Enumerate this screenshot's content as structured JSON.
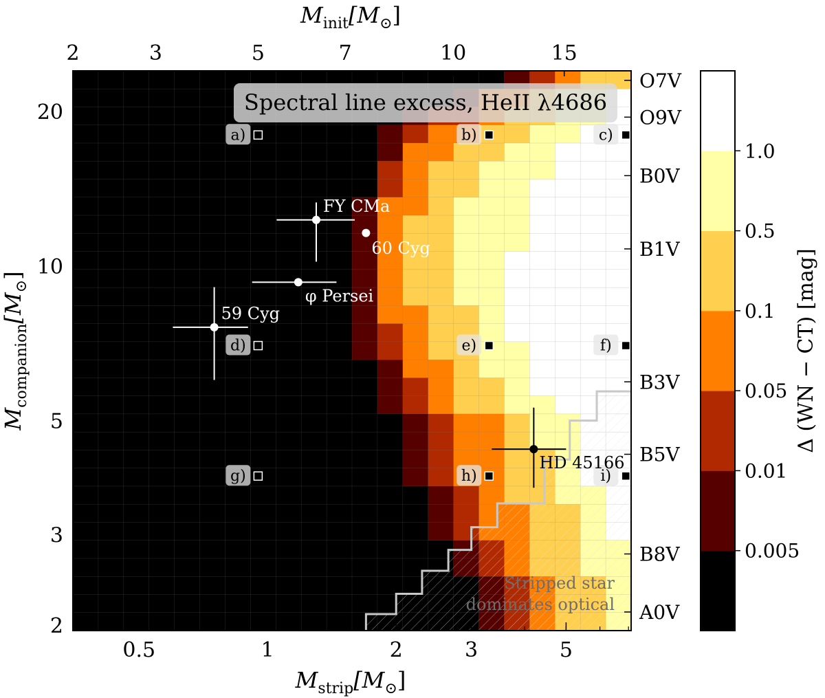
{
  "chart_data": {
    "type": "heatmap",
    "title": "Spectral line excess, HeII λ4686",
    "xlabel_bottom": {
      "main": "M",
      "sub": "strip",
      "unit": "[M",
      "unit_sub": "⊙",
      "unit_close": "]"
    },
    "xlabel_top": {
      "main": "M",
      "sub": "init",
      "unit": "[M",
      "unit_sub": "⊙",
      "unit_close": "]"
    },
    "ylabel": {
      "main": "M",
      "sub": "companion",
      "unit": "[M",
      "unit_sub": "⊙",
      "unit_close": "]"
    },
    "colorbar_label": "Δ (WN − CT) [mag]",
    "x_scale": "log",
    "y_scale": "log",
    "xlim": [
      0.35,
      7.1
    ],
    "ylim": [
      1.95,
      24.0
    ],
    "x_ticks": [
      {
        "v": 0.5,
        "label": "0.5"
      },
      {
        "v": 1,
        "label": "1"
      },
      {
        "v": 2,
        "label": "2"
      },
      {
        "v": 3,
        "label": "3"
      },
      {
        "v": 5,
        "label": "5"
      }
    ],
    "x_top_ticks": [
      {
        "v": 0.35,
        "label": "2"
      },
      {
        "v": 0.547,
        "label": "3"
      },
      {
        "v": 0.95,
        "label": "5"
      },
      {
        "v": 1.52,
        "label": "7"
      },
      {
        "v": 2.72,
        "label": "10"
      },
      {
        "v": 4.95,
        "label": "15"
      }
    ],
    "y_ticks": [
      {
        "v": 2,
        "label": "2"
      },
      {
        "v": 3,
        "label": "3"
      },
      {
        "v": 5,
        "label": "5"
      },
      {
        "v": 10,
        "label": "10"
      },
      {
        "v": 20,
        "label": "20"
      }
    ],
    "y_right_ticks": [
      {
        "v": 23.0,
        "label": "O7V"
      },
      {
        "v": 19.5,
        "label": "O9V"
      },
      {
        "v": 15.0,
        "label": "B0V"
      },
      {
        "v": 10.8,
        "label": "B1V"
      },
      {
        "v": 5.95,
        "label": "B3V"
      },
      {
        "v": 4.3,
        "label": "B5V"
      },
      {
        "v": 2.75,
        "label": "B8V"
      },
      {
        "v": 2.12,
        "label": "A0V"
      }
    ],
    "colorbar": {
      "bins": [
        {
          "lo": 0,
          "hi": 0.005,
          "color": "#000000"
        },
        {
          "lo": 0.005,
          "hi": 0.01,
          "color": "#560000"
        },
        {
          "lo": 0.01,
          "hi": 0.05,
          "color": "#b02900"
        },
        {
          "lo": 0.05,
          "hi": 0.1,
          "color": "#ff7f00"
        },
        {
          "lo": 0.1,
          "hi": 0.5,
          "color": "#ffcf4f"
        },
        {
          "lo": 0.5,
          "hi": 1.0,
          "color": "#ffffa8"
        },
        {
          "lo": 1.0,
          "hi": 1.5,
          "color": "#ffffff"
        }
      ],
      "tick_labels": [
        "0.005",
        "0.01",
        "0.05",
        "0.1",
        "0.5",
        "1.0"
      ]
    },
    "grid": {
      "x_cols": 22,
      "y_rows": 31,
      "x_min": 0.35,
      "x_max": 7.1,
      "y_min": 1.95,
      "y_max": 24.0,
      "level_boundaries_by_row": [
        [
          17,
          18,
          19,
          20,
          22,
          22
        ],
        [
          15,
          16,
          16,
          18,
          19,
          21
        ],
        [
          13,
          14,
          16,
          17,
          19,
          21
        ],
        [
          12,
          13,
          14,
          16,
          18,
          20
        ],
        [
          12,
          13,
          13,
          15,
          17,
          19
        ],
        [
          12,
          12,
          13,
          14,
          16,
          19
        ],
        [
          12,
          12,
          13,
          14,
          16,
          18
        ],
        [
          11,
          12,
          12,
          14,
          15,
          18
        ],
        [
          11,
          12,
          12,
          13,
          15,
          18
        ],
        [
          11,
          12,
          12,
          13,
          15,
          18
        ],
        [
          11,
          12,
          12,
          13,
          15,
          17
        ],
        [
          11,
          12,
          12,
          13,
          15,
          17
        ],
        [
          11,
          12,
          12,
          13,
          15,
          17
        ],
        [
          11,
          12,
          12,
          14,
          16,
          17
        ],
        [
          11,
          12,
          13,
          14,
          16,
          17
        ],
        [
          11,
          12,
          13,
          14,
          16,
          18
        ],
        [
          12,
          13,
          13,
          15,
          16,
          18
        ],
        [
          12,
          13,
          14,
          15,
          17,
          18
        ],
        [
          12,
          13,
          14,
          15,
          17,
          19
        ],
        [
          13,
          14,
          15,
          17,
          18,
          20
        ],
        [
          13,
          14,
          15,
          17,
          18,
          20
        ],
        [
          13,
          14,
          15,
          17,
          19,
          20
        ],
        [
          13,
          14,
          15,
          17,
          19,
          20
        ],
        [
          14,
          15,
          16,
          17,
          19,
          21
        ],
        [
          14,
          15,
          16,
          18,
          20,
          21
        ],
        [
          14,
          15,
          16,
          18,
          20,
          21
        ],
        [
          15,
          16,
          17,
          18,
          20,
          22
        ],
        [
          15,
          16,
          17,
          18,
          20,
          22
        ],
        [
          16,
          17,
          18,
          19,
          21,
          22
        ],
        [
          16,
          17,
          18,
          19,
          21,
          22
        ],
        [
          16,
          17,
          18,
          19,
          21,
          22
        ]
      ]
    },
    "stripped_dominates_boundary": [
      [
        1.7,
        1.95
      ],
      [
        1.7,
        2.1
      ],
      [
        2.0,
        2.1
      ],
      [
        2.0,
        2.3
      ],
      [
        2.3,
        2.3
      ],
      [
        2.3,
        2.55
      ],
      [
        2.65,
        2.55
      ],
      [
        2.65,
        2.8
      ],
      [
        3.0,
        2.8
      ],
      [
        3.0,
        3.1
      ],
      [
        3.45,
        3.1
      ],
      [
        3.45,
        3.45
      ],
      [
        4.45,
        3.45
      ],
      [
        4.45,
        4.2
      ],
      [
        5.1,
        4.2
      ],
      [
        5.1,
        5.0
      ],
      [
        5.9,
        5.0
      ],
      [
        5.9,
        5.7
      ],
      [
        7.1,
        5.7
      ]
    ],
    "stripped_label": [
      "Stripped star",
      "dominates optical"
    ],
    "models": [
      {
        "id": "a",
        "label": "a)",
        "x": 0.95,
        "y": 18.0,
        "filled": false
      },
      {
        "id": "b",
        "label": "b)",
        "x": 3.3,
        "y": 18.0,
        "filled": true
      },
      {
        "id": "c",
        "label": "c)",
        "x": 6.9,
        "y": 18.0,
        "filled": true
      },
      {
        "id": "d",
        "label": "d)",
        "x": 0.95,
        "y": 7.0,
        "filled": false
      },
      {
        "id": "e",
        "label": "e)",
        "x": 3.3,
        "y": 7.0,
        "filled": true
      },
      {
        "id": "f",
        "label": "f)",
        "x": 6.9,
        "y": 7.0,
        "filled": true
      },
      {
        "id": "g",
        "label": "g)",
        "x": 0.95,
        "y": 3.9,
        "filled": false
      },
      {
        "id": "h",
        "label": "h)",
        "x": 3.3,
        "y": 3.9,
        "filled": true
      },
      {
        "id": "i",
        "label": "i)",
        "x": 6.9,
        "y": 3.9,
        "filled": true
      }
    ],
    "observed_systems": [
      {
        "name": "FY CMa",
        "x": 1.3,
        "y": 12.3,
        "xerr": [
          1.05,
          1.6
        ],
        "yerr": [
          10.2,
          13.3
        ],
        "color": "#ffffff"
      },
      {
        "name": "60 Cyg",
        "x": 1.7,
        "y": 11.6,
        "xerr": null,
        "yerr": null,
        "color": "#ffffff"
      },
      {
        "name": "φ Persei",
        "x": 1.18,
        "y": 9.3,
        "xerr": [
          0.92,
          1.45
        ],
        "yerr": null,
        "color": "#ffffff"
      },
      {
        "name": "59 Cyg",
        "x": 0.75,
        "y": 7.6,
        "xerr": [
          0.6,
          0.9
        ],
        "yerr": [
          6.0,
          9.1
        ],
        "color": "#ffffff"
      },
      {
        "name": "HD 45166",
        "x": 4.2,
        "y": 4.4,
        "xerr": [
          3.35,
          5.0
        ],
        "yerr": [
          3.7,
          5.3
        ],
        "color": "#000000"
      }
    ]
  }
}
